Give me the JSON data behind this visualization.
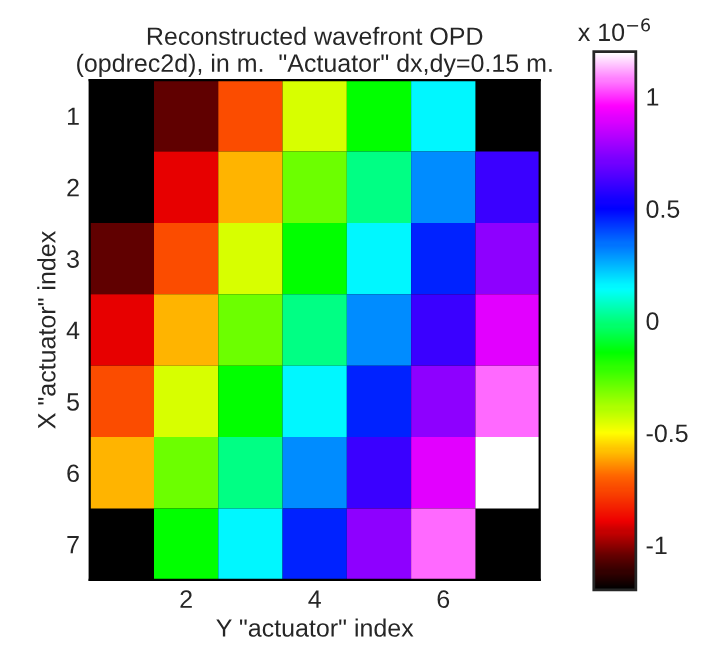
{
  "chart_data": {
    "type": "heatmap",
    "title": "Reconstructed wavefront OPD\n(opdrec2d), in m.  \"Actuator\" dx,dy=0.15 m.",
    "xlabel": "Y \"actuator\" index",
    "ylabel": "X \"actuator\" index",
    "clabel": "x 10$^{−6}$",
    "categories": [
      null,
      "2",
      null,
      "4",
      null,
      "6",
      null
    ],
    "y_categories": [
      "1",
      "2",
      "3",
      "4",
      "5",
      "6",
      "7"
    ],
    "cells": [
      [
        null,
        -1.05,
        -0.75,
        -0.45,
        -0.15,
        0.15,
        null
      ],
      [
        -1.2,
        -0.9,
        -0.6,
        -0.3,
        0.0,
        0.3,
        0.6
      ],
      [
        -1.05,
        -0.75,
        -0.45,
        -0.15,
        0.15,
        0.45,
        0.75
      ],
      [
        -0.9,
        -0.6,
        -0.3,
        0.0,
        0.3,
        0.6,
        0.9
      ],
      [
        -0.75,
        -0.45,
        -0.15,
        0.15,
        0.45,
        0.75,
        1.05
      ],
      [
        -0.6,
        -0.3,
        0.0,
        0.3,
        0.6,
        0.9,
        1.2
      ],
      [
        null,
        -0.15,
        0.15,
        0.45,
        0.75,
        1.05,
        null
      ]
    ],
    "clim": [
      -1.2,
      1.2
    ],
    "cticks": [
      -1,
      {
        "value": -0.5,
        "label": "-0.5"
      },
      0,
      0.5,
      1
    ]
  }
}
